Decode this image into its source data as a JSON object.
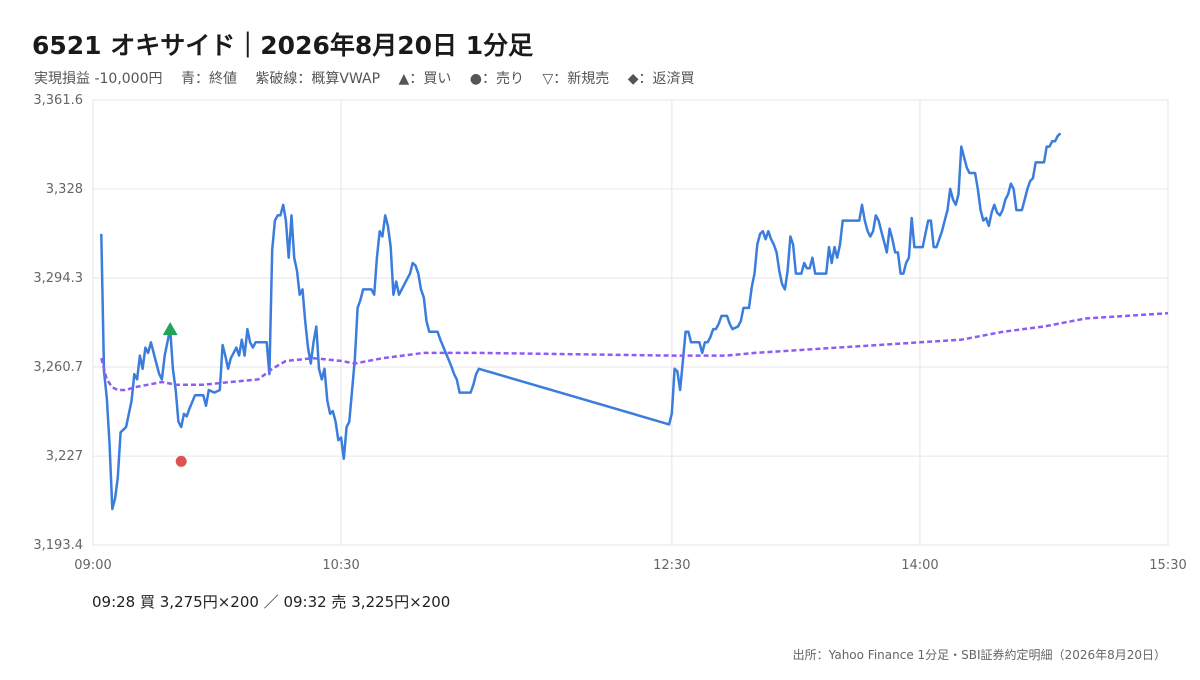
{
  "header": {
    "title": "6521 オキサイド｜2026年8月20日 1分足",
    "legend": {
      "pnl": "実現損益 -10,000円",
      "close": "青：終値",
      "vwap": "紫破線：概算VWAP",
      "buy": "▲：買い",
      "sell": "●：売り",
      "short_sell": "▽：新規売",
      "buy_to_cover": "◆：返済買"
    }
  },
  "colors": {
    "price": "#3b7ddd",
    "vwap": "#8b5cf6",
    "buy": "#22a35a",
    "sell": "#e05252",
    "grid": "#e6e6e6",
    "axis": "#bbbbbb"
  },
  "chart_data": {
    "type": "line",
    "ylim": [
      3193.4,
      3361.6
    ],
    "y_ticks": [
      "3,193.4",
      "3,227",
      "3,260.7",
      "3,294.3",
      "3,328",
      "3,361.6"
    ],
    "x_ticks": [
      "09:00",
      "10:30",
      "12:30",
      "14:00",
      "15:30"
    ],
    "x_tick_times": [
      "09:00",
      "10:30",
      "12:30",
      "14:00",
      "15:30"
    ],
    "grid": true,
    "series": [
      {
        "key": "close",
        "points": [
          [
            "09:03",
            3311
          ],
          [
            "09:04",
            3259
          ],
          [
            "09:05",
            3249
          ],
          [
            "09:06",
            3232
          ],
          [
            "09:07",
            3207
          ],
          [
            "09:08",
            3211
          ],
          [
            "09:09",
            3219
          ],
          [
            "09:10",
            3236
          ],
          [
            "09:12",
            3238
          ],
          [
            "09:14",
            3248
          ],
          [
            "09:15",
            3258
          ],
          [
            "09:16",
            3256
          ],
          [
            "09:17",
            3265
          ],
          [
            "09:18",
            3260
          ],
          [
            "09:19",
            3268
          ],
          [
            "09:20",
            3266
          ],
          [
            "09:21",
            3270
          ],
          [
            "09:23",
            3262
          ],
          [
            "09:24",
            3258
          ],
          [
            "09:25",
            3256
          ],
          [
            "09:26",
            3265
          ],
          [
            "09:27",
            3270
          ],
          [
            "09:28",
            3275
          ],
          [
            "09:29",
            3260
          ],
          [
            "09:30",
            3252
          ],
          [
            "09:31",
            3240
          ],
          [
            "09:32",
            3238
          ],
          [
            "09:33",
            3243
          ],
          [
            "09:34",
            3242
          ],
          [
            "09:35",
            3245
          ],
          [
            "09:37",
            3250
          ],
          [
            "09:40",
            3250
          ],
          [
            "09:41",
            3246
          ],
          [
            "09:42",
            3252
          ],
          [
            "09:44",
            3251
          ],
          [
            "09:46",
            3252
          ],
          [
            "09:47",
            3269
          ],
          [
            "09:48",
            3265
          ],
          [
            "09:49",
            3260
          ],
          [
            "09:50",
            3264
          ],
          [
            "09:51",
            3266
          ],
          [
            "09:52",
            3268
          ],
          [
            "09:53",
            3265
          ],
          [
            "09:54",
            3271
          ],
          [
            "09:55",
            3265
          ],
          [
            "09:56",
            3275
          ],
          [
            "09:57",
            3270
          ],
          [
            "09:58",
            3268
          ],
          [
            "09:59",
            3270
          ],
          [
            "10:03",
            3270
          ],
          [
            "10:04",
            3258
          ],
          [
            "10:05",
            3305
          ],
          [
            "10:06",
            3316
          ],
          [
            "10:07",
            3318
          ],
          [
            "10:08",
            3318
          ],
          [
            "10:09",
            3322
          ],
          [
            "10:10",
            3316
          ],
          [
            "10:11",
            3302
          ],
          [
            "10:12",
            3318
          ],
          [
            "10:13",
            3302
          ],
          [
            "10:14",
            3297
          ],
          [
            "10:15",
            3288
          ],
          [
            "10:16",
            3290
          ],
          [
            "10:17",
            3278
          ],
          [
            "10:18",
            3268
          ],
          [
            "10:19",
            3262
          ],
          [
            "10:20",
            3270
          ],
          [
            "10:21",
            3276
          ],
          [
            "10:22",
            3260
          ],
          [
            "10:23",
            3256
          ],
          [
            "10:24",
            3260
          ],
          [
            "10:25",
            3248
          ],
          [
            "10:26",
            3243
          ],
          [
            "10:27",
            3244
          ],
          [
            "10:28",
            3240
          ],
          [
            "10:29",
            3233
          ],
          [
            "10:30",
            3234
          ],
          [
            "10:31",
            3226
          ],
          [
            "10:32",
            3238
          ],
          [
            "10:33",
            3240
          ],
          [
            "10:34",
            3252
          ],
          [
            "10:35",
            3264
          ],
          [
            "10:36",
            3283
          ],
          [
            "10:37",
            3286
          ],
          [
            "10:38",
            3290
          ],
          [
            "10:39",
            3290
          ],
          [
            "10:41",
            3290
          ],
          [
            "10:42",
            3288
          ],
          [
            "10:43",
            3302
          ],
          [
            "10:44",
            3312
          ],
          [
            "10:45",
            3310
          ],
          [
            "10:46",
            3318
          ],
          [
            "10:47",
            3314
          ],
          [
            "10:48",
            3306
          ],
          [
            "10:49",
            3288
          ],
          [
            "10:50",
            3293
          ],
          [
            "10:51",
            3288
          ],
          [
            "10:52",
            3290
          ],
          [
            "10:54",
            3294
          ],
          [
            "10:55",
            3296
          ],
          [
            "10:56",
            3300
          ],
          [
            "10:57",
            3299
          ],
          [
            "10:58",
            3296
          ],
          [
            "10:59",
            3290
          ],
          [
            "11:00",
            3287
          ],
          [
            "11:01",
            3278
          ],
          [
            "11:02",
            3274
          ],
          [
            "11:03",
            3274
          ],
          [
            "11:05",
            3274
          ],
          [
            "11:06",
            3271
          ],
          [
            "11:08",
            3266
          ],
          [
            "11:10",
            3261
          ],
          [
            "11:11",
            3258
          ],
          [
            "11:12",
            3256
          ],
          [
            "11:13",
            3251
          ],
          [
            "11:14",
            3251
          ],
          [
            "11:17",
            3251
          ],
          [
            "11:18",
            3254
          ],
          [
            "11:19",
            3258
          ],
          [
            "11:20",
            3260
          ],
          [
            "12:29",
            3239
          ],
          [
            "12:30",
            3243
          ],
          [
            "12:31",
            3260
          ],
          [
            "12:32",
            3259
          ],
          [
            "12:33",
            3252
          ],
          [
            "12:34",
            3263
          ],
          [
            "12:35",
            3274
          ],
          [
            "12:36",
            3274
          ],
          [
            "12:37",
            3270
          ],
          [
            "12:38",
            3270
          ],
          [
            "12:40",
            3270
          ],
          [
            "12:41",
            3266
          ],
          [
            "12:42",
            3270
          ],
          [
            "12:43",
            3270
          ],
          [
            "12:44",
            3272
          ],
          [
            "12:45",
            3275
          ],
          [
            "12:46",
            3275
          ],
          [
            "12:47",
            3277
          ],
          [
            "12:48",
            3280
          ],
          [
            "12:50",
            3280
          ],
          [
            "12:51",
            3277
          ],
          [
            "12:52",
            3275
          ],
          [
            "12:54",
            3276
          ],
          [
            "12:55",
            3278
          ],
          [
            "12:56",
            3283
          ],
          [
            "12:58",
            3283
          ],
          [
            "12:59",
            3291
          ],
          [
            "13:00",
            3296
          ],
          [
            "13:01",
            3307
          ],
          [
            "13:02",
            3311
          ],
          [
            "13:03",
            3312
          ],
          [
            "13:04",
            3309
          ],
          [
            "13:05",
            3312
          ],
          [
            "13:06",
            3309
          ],
          [
            "13:07",
            3307
          ],
          [
            "13:08",
            3304
          ],
          [
            "13:09",
            3297
          ],
          [
            "13:10",
            3292
          ],
          [
            "13:11",
            3290
          ],
          [
            "13:12",
            3297
          ],
          [
            "13:13",
            3310
          ],
          [
            "13:14",
            3307
          ],
          [
            "13:15",
            3296
          ],
          [
            "13:16",
            3296
          ],
          [
            "13:17",
            3296
          ],
          [
            "13:18",
            3300
          ],
          [
            "13:19",
            3298
          ],
          [
            "13:20",
            3298
          ],
          [
            "13:21",
            3302
          ],
          [
            "13:22",
            3296
          ],
          [
            "13:23",
            3296
          ],
          [
            "13:26",
            3296
          ],
          [
            "13:27",
            3306
          ],
          [
            "13:28",
            3300
          ],
          [
            "13:29",
            3306
          ],
          [
            "13:30",
            3302
          ],
          [
            "13:31",
            3307
          ],
          [
            "13:32",
            3316
          ],
          [
            "13:34",
            3316
          ],
          [
            "13:38",
            3316
          ],
          [
            "13:39",
            3322
          ],
          [
            "13:40",
            3316
          ],
          [
            "13:41",
            3312
          ],
          [
            "13:42",
            3310
          ],
          [
            "13:43",
            3312
          ],
          [
            "13:44",
            3318
          ],
          [
            "13:45",
            3316
          ],
          [
            "13:46",
            3312
          ],
          [
            "13:47",
            3308
          ],
          [
            "13:48",
            3304
          ],
          [
            "13:49",
            3313
          ],
          [
            "13:50",
            3309
          ],
          [
            "13:51",
            3304
          ],
          [
            "13:52",
            3304
          ],
          [
            "13:53",
            3296
          ],
          [
            "13:54",
            3296
          ],
          [
            "13:55",
            3300
          ],
          [
            "13:56",
            3302
          ],
          [
            "13:57",
            3317
          ],
          [
            "13:58",
            3306
          ],
          [
            "13:59",
            3306
          ],
          [
            "14:00",
            3306
          ],
          [
            "14:01",
            3306
          ],
          [
            "14:02",
            3311
          ],
          [
            "14:03",
            3316
          ],
          [
            "14:04",
            3316
          ],
          [
            "14:05",
            3306
          ],
          [
            "14:06",
            3306
          ],
          [
            "14:07",
            3309
          ],
          [
            "14:08",
            3312
          ],
          [
            "14:09",
            3316
          ],
          [
            "14:10",
            3320
          ],
          [
            "14:11",
            3328
          ],
          [
            "14:12",
            3324
          ],
          [
            "14:13",
            3322
          ],
          [
            "14:14",
            3326
          ],
          [
            "14:15",
            3344
          ],
          [
            "14:16",
            3340
          ],
          [
            "14:17",
            3336
          ],
          [
            "14:18",
            3334
          ],
          [
            "14:19",
            3334
          ],
          [
            "14:20",
            3334
          ],
          [
            "14:21",
            3328
          ],
          [
            "14:22",
            3320
          ],
          [
            "14:23",
            3316
          ],
          [
            "14:24",
            3317
          ],
          [
            "14:25",
            3314
          ],
          [
            "14:26",
            3319
          ],
          [
            "14:27",
            3322
          ],
          [
            "14:28",
            3319
          ],
          [
            "14:29",
            3318
          ],
          [
            "14:30",
            3320
          ],
          [
            "14:31",
            3324
          ],
          [
            "14:32",
            3326
          ],
          [
            "14:33",
            3330
          ],
          [
            "14:34",
            3328
          ],
          [
            "14:35",
            3320
          ],
          [
            "14:36",
            3320
          ],
          [
            "14:37",
            3320
          ],
          [
            "14:38",
            3324
          ],
          [
            "14:39",
            3328
          ],
          [
            "14:40",
            3331
          ],
          [
            "14:41",
            3332
          ],
          [
            "14:42",
            3338
          ],
          [
            "14:43",
            3338
          ],
          [
            "14:45",
            3338
          ],
          [
            "14:46",
            3344
          ],
          [
            "14:47",
            3344
          ],
          [
            "14:48",
            3346
          ],
          [
            "14:49",
            3346
          ],
          [
            "14:50",
            3348
          ],
          [
            "14:51",
            3349
          ]
        ]
      },
      {
        "key": "vwap",
        "points": [
          [
            "09:03",
            3264
          ],
          [
            "09:05",
            3256
          ],
          [
            "09:07",
            3253
          ],
          [
            "09:09",
            3252
          ],
          [
            "09:12",
            3252
          ],
          [
            "09:15",
            3253
          ],
          [
            "09:20",
            3254
          ],
          [
            "09:25",
            3255
          ],
          [
            "09:30",
            3254
          ],
          [
            "09:40",
            3254
          ],
          [
            "09:50",
            3255
          ],
          [
            "10:00",
            3256
          ],
          [
            "10:05",
            3260
          ],
          [
            "10:10",
            3263
          ],
          [
            "10:20",
            3264
          ],
          [
            "10:30",
            3263
          ],
          [
            "10:35",
            3262
          ],
          [
            "10:45",
            3264
          ],
          [
            "11:00",
            3266
          ],
          [
            "11:20",
            3266
          ],
          [
            "12:30",
            3265
          ],
          [
            "12:50",
            3265
          ],
          [
            "13:00",
            3266
          ],
          [
            "13:15",
            3267
          ],
          [
            "13:30",
            3268
          ],
          [
            "13:45",
            3269
          ],
          [
            "14:00",
            3270
          ],
          [
            "14:15",
            3271
          ],
          [
            "14:30",
            3274
          ],
          [
            "14:45",
            3276
          ],
          [
            "15:00",
            3279
          ],
          [
            "15:30",
            3281
          ]
        ]
      }
    ],
    "markers": [
      {
        "type": "buy",
        "time": "09:28",
        "value": 3275
      },
      {
        "type": "sell",
        "time": "09:32",
        "value": 3225
      }
    ]
  },
  "trades_text": "09:28 買 3,275円×200 ／ 09:32 売 3,225円×200",
  "source_text": "出所：Yahoo Finance 1分足・SBI証券約定明細（2026年8月20日）"
}
